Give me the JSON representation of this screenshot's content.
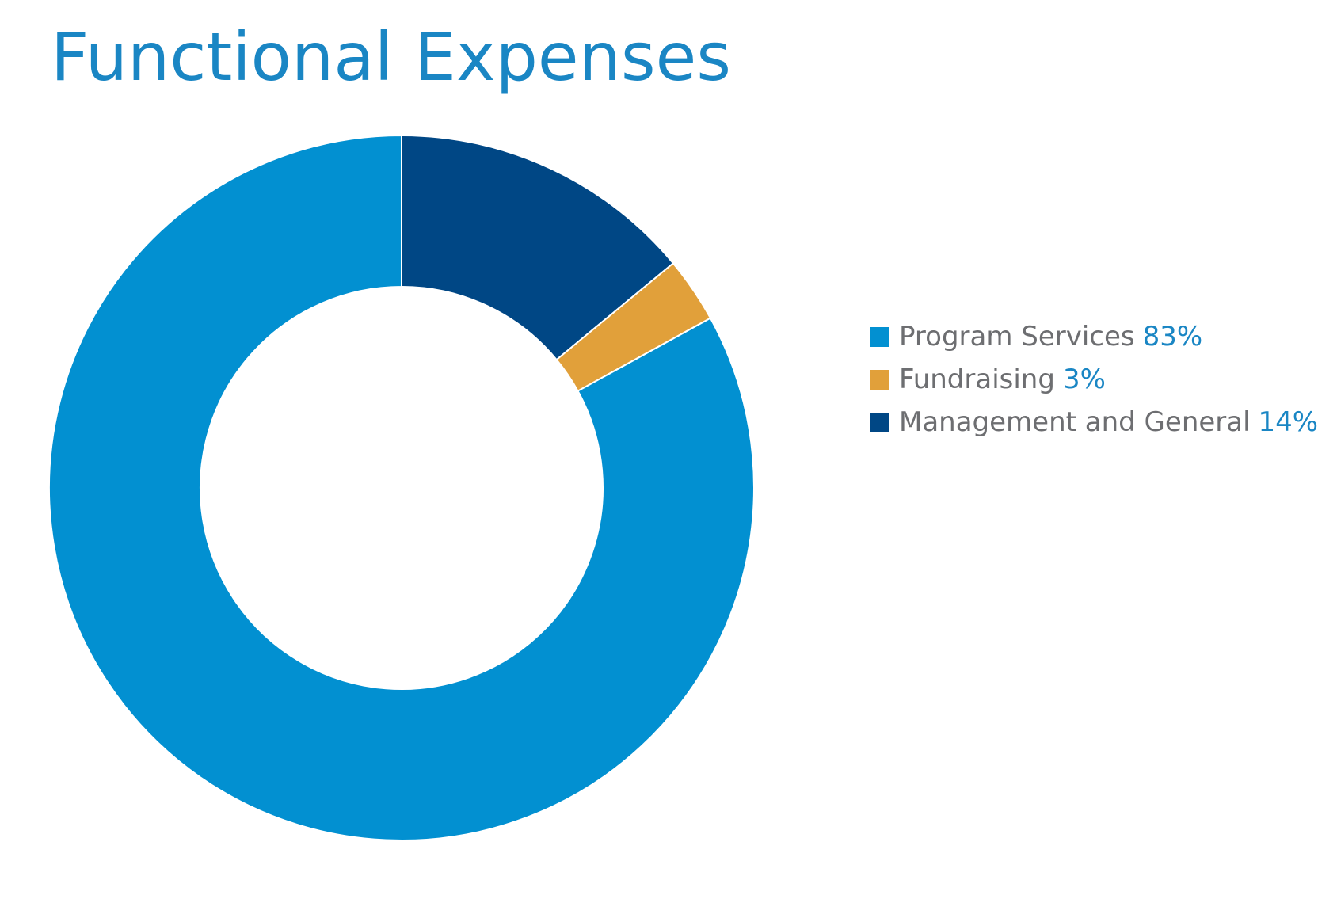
{
  "chart_data": {
    "type": "pie",
    "style": "donut",
    "title": "Functional Expenses",
    "series": [
      {
        "name": "Management and General",
        "value": 14,
        "label": "14%",
        "color": "#004785"
      },
      {
        "name": "Fundraising",
        "value": 3,
        "label": "3%",
        "color": "#e1a03a"
      },
      {
        "name": "Program Services",
        "value": 83,
        "label": "83%",
        "color": "#0290d1"
      }
    ],
    "legend": [
      {
        "name": "Program Services",
        "label": "83%",
        "color": "#0290d1"
      },
      {
        "name": "Fundraising",
        "label": "3%",
        "color": "#e1a03a"
      },
      {
        "name": "Management and General",
        "label": "14%",
        "color": "#004785"
      }
    ],
    "legend_position": "right"
  }
}
